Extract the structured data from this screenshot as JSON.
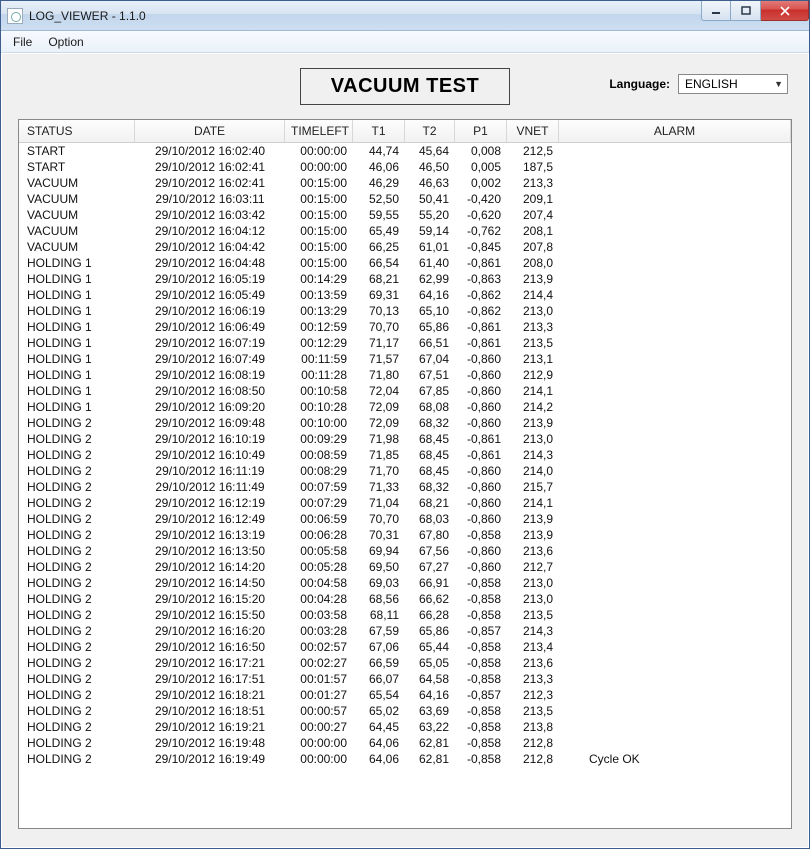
{
  "window": {
    "title": "LOG_VIEWER - 1.1.0"
  },
  "menu": {
    "file": "File",
    "option": "Option"
  },
  "header": {
    "test_title": "VACUUM TEST",
    "language_label": "Language:",
    "language_value": "ENGLISH"
  },
  "columns": {
    "status": "STATUS",
    "date": "DATE",
    "timeleft": "TIMELEFT",
    "t1": "T1",
    "t2": "T2",
    "p1": "P1",
    "vnet": "VNET",
    "alarm": "ALARM"
  },
  "rows": [
    {
      "status": "START",
      "date": "29/10/2012 16:02:40",
      "timeleft": "00:00:00",
      "t1": "44,74",
      "t2": "45,64",
      "p1": "0,008",
      "vnet": "212,5",
      "alarm": ""
    },
    {
      "status": "START",
      "date": "29/10/2012 16:02:41",
      "timeleft": "00:00:00",
      "t1": "46,06",
      "t2": "46,50",
      "p1": "0,005",
      "vnet": "187,5",
      "alarm": ""
    },
    {
      "status": "VACUUM",
      "date": "29/10/2012 16:02:41",
      "timeleft": "00:15:00",
      "t1": "46,29",
      "t2": "46,63",
      "p1": "0,002",
      "vnet": "213,3",
      "alarm": ""
    },
    {
      "status": "VACUUM",
      "date": "29/10/2012 16:03:11",
      "timeleft": "00:15:00",
      "t1": "52,50",
      "t2": "50,41",
      "p1": "-0,420",
      "vnet": "209,1",
      "alarm": ""
    },
    {
      "status": "VACUUM",
      "date": "29/10/2012 16:03:42",
      "timeleft": "00:15:00",
      "t1": "59,55",
      "t2": "55,20",
      "p1": "-0,620",
      "vnet": "207,4",
      "alarm": ""
    },
    {
      "status": "VACUUM",
      "date": "29/10/2012 16:04:12",
      "timeleft": "00:15:00",
      "t1": "65,49",
      "t2": "59,14",
      "p1": "-0,762",
      "vnet": "208,1",
      "alarm": ""
    },
    {
      "status": "VACUUM",
      "date": "29/10/2012 16:04:42",
      "timeleft": "00:15:00",
      "t1": "66,25",
      "t2": "61,01",
      "p1": "-0,845",
      "vnet": "207,8",
      "alarm": ""
    },
    {
      "status": "HOLDING 1",
      "date": "29/10/2012 16:04:48",
      "timeleft": "00:15:00",
      "t1": "66,54",
      "t2": "61,40",
      "p1": "-0,861",
      "vnet": "208,0",
      "alarm": ""
    },
    {
      "status": "HOLDING 1",
      "date": "29/10/2012 16:05:19",
      "timeleft": "00:14:29",
      "t1": "68,21",
      "t2": "62,99",
      "p1": "-0,863",
      "vnet": "213,9",
      "alarm": ""
    },
    {
      "status": "HOLDING 1",
      "date": "29/10/2012 16:05:49",
      "timeleft": "00:13:59",
      "t1": "69,31",
      "t2": "64,16",
      "p1": "-0,862",
      "vnet": "214,4",
      "alarm": ""
    },
    {
      "status": "HOLDING 1",
      "date": "29/10/2012 16:06:19",
      "timeleft": "00:13:29",
      "t1": "70,13",
      "t2": "65,10",
      "p1": "-0,862",
      "vnet": "213,0",
      "alarm": ""
    },
    {
      "status": "HOLDING 1",
      "date": "29/10/2012 16:06:49",
      "timeleft": "00:12:59",
      "t1": "70,70",
      "t2": "65,86",
      "p1": "-0,861",
      "vnet": "213,3",
      "alarm": ""
    },
    {
      "status": "HOLDING 1",
      "date": "29/10/2012 16:07:19",
      "timeleft": "00:12:29",
      "t1": "71,17",
      "t2": "66,51",
      "p1": "-0,861",
      "vnet": "213,5",
      "alarm": ""
    },
    {
      "status": "HOLDING 1",
      "date": "29/10/2012 16:07:49",
      "timeleft": "00:11:59",
      "t1": "71,57",
      "t2": "67,04",
      "p1": "-0,860",
      "vnet": "213,1",
      "alarm": ""
    },
    {
      "status": "HOLDING 1",
      "date": "29/10/2012 16:08:19",
      "timeleft": "00:11:28",
      "t1": "71,80",
      "t2": "67,51",
      "p1": "-0,860",
      "vnet": "212,9",
      "alarm": ""
    },
    {
      "status": "HOLDING 1",
      "date": "29/10/2012 16:08:50",
      "timeleft": "00:10:58",
      "t1": "72,04",
      "t2": "67,85",
      "p1": "-0,860",
      "vnet": "214,1",
      "alarm": ""
    },
    {
      "status": "HOLDING 1",
      "date": "29/10/2012 16:09:20",
      "timeleft": "00:10:28",
      "t1": "72,09",
      "t2": "68,08",
      "p1": "-0,860",
      "vnet": "214,2",
      "alarm": ""
    },
    {
      "status": "HOLDING 2",
      "date": "29/10/2012 16:09:48",
      "timeleft": "00:10:00",
      "t1": "72,09",
      "t2": "68,32",
      "p1": "-0,860",
      "vnet": "213,9",
      "alarm": ""
    },
    {
      "status": "HOLDING 2",
      "date": "29/10/2012 16:10:19",
      "timeleft": "00:09:29",
      "t1": "71,98",
      "t2": "68,45",
      "p1": "-0,861",
      "vnet": "213,0",
      "alarm": ""
    },
    {
      "status": "HOLDING 2",
      "date": "29/10/2012 16:10:49",
      "timeleft": "00:08:59",
      "t1": "71,85",
      "t2": "68,45",
      "p1": "-0,861",
      "vnet": "214,3",
      "alarm": ""
    },
    {
      "status": "HOLDING 2",
      "date": "29/10/2012 16:11:19",
      "timeleft": "00:08:29",
      "t1": "71,70",
      "t2": "68,45",
      "p1": "-0,860",
      "vnet": "214,0",
      "alarm": ""
    },
    {
      "status": "HOLDING 2",
      "date": "29/10/2012 16:11:49",
      "timeleft": "00:07:59",
      "t1": "71,33",
      "t2": "68,32",
      "p1": "-0,860",
      "vnet": "215,7",
      "alarm": ""
    },
    {
      "status": "HOLDING 2",
      "date": "29/10/2012 16:12:19",
      "timeleft": "00:07:29",
      "t1": "71,04",
      "t2": "68,21",
      "p1": "-0,860",
      "vnet": "214,1",
      "alarm": ""
    },
    {
      "status": "HOLDING 2",
      "date": "29/10/2012 16:12:49",
      "timeleft": "00:06:59",
      "t1": "70,70",
      "t2": "68,03",
      "p1": "-0,860",
      "vnet": "213,9",
      "alarm": ""
    },
    {
      "status": "HOLDING 2",
      "date": "29/10/2012 16:13:19",
      "timeleft": "00:06:28",
      "t1": "70,31",
      "t2": "67,80",
      "p1": "-0,858",
      "vnet": "213,9",
      "alarm": ""
    },
    {
      "status": "HOLDING 2",
      "date": "29/10/2012 16:13:50",
      "timeleft": "00:05:58",
      "t1": "69,94",
      "t2": "67,56",
      "p1": "-0,860",
      "vnet": "213,6",
      "alarm": ""
    },
    {
      "status": "HOLDING 2",
      "date": "29/10/2012 16:14:20",
      "timeleft": "00:05:28",
      "t1": "69,50",
      "t2": "67,27",
      "p1": "-0,860",
      "vnet": "212,7",
      "alarm": ""
    },
    {
      "status": "HOLDING 2",
      "date": "29/10/2012 16:14:50",
      "timeleft": "00:04:58",
      "t1": "69,03",
      "t2": "66,91",
      "p1": "-0,858",
      "vnet": "213,0",
      "alarm": ""
    },
    {
      "status": "HOLDING 2",
      "date": "29/10/2012 16:15:20",
      "timeleft": "00:04:28",
      "t1": "68,56",
      "t2": "66,62",
      "p1": "-0,858",
      "vnet": "213,0",
      "alarm": ""
    },
    {
      "status": "HOLDING 2",
      "date": "29/10/2012 16:15:50",
      "timeleft": "00:03:58",
      "t1": "68,11",
      "t2": "66,28",
      "p1": "-0,858",
      "vnet": "213,5",
      "alarm": ""
    },
    {
      "status": "HOLDING 2",
      "date": "29/10/2012 16:16:20",
      "timeleft": "00:03:28",
      "t1": "67,59",
      "t2": "65,86",
      "p1": "-0,857",
      "vnet": "214,3",
      "alarm": ""
    },
    {
      "status": "HOLDING 2",
      "date": "29/10/2012 16:16:50",
      "timeleft": "00:02:57",
      "t1": "67,06",
      "t2": "65,44",
      "p1": "-0,858",
      "vnet": "213,4",
      "alarm": ""
    },
    {
      "status": "HOLDING 2",
      "date": "29/10/2012 16:17:21",
      "timeleft": "00:02:27",
      "t1": "66,59",
      "t2": "65,05",
      "p1": "-0,858",
      "vnet": "213,6",
      "alarm": ""
    },
    {
      "status": "HOLDING 2",
      "date": "29/10/2012 16:17:51",
      "timeleft": "00:01:57",
      "t1": "66,07",
      "t2": "64,58",
      "p1": "-0,858",
      "vnet": "213,3",
      "alarm": ""
    },
    {
      "status": "HOLDING 2",
      "date": "29/10/2012 16:18:21",
      "timeleft": "00:01:27",
      "t1": "65,54",
      "t2": "64,16",
      "p1": "-0,857",
      "vnet": "212,3",
      "alarm": ""
    },
    {
      "status": "HOLDING 2",
      "date": "29/10/2012 16:18:51",
      "timeleft": "00:00:57",
      "t1": "65,02",
      "t2": "63,69",
      "p1": "-0,858",
      "vnet": "213,5",
      "alarm": ""
    },
    {
      "status": "HOLDING 2",
      "date": "29/10/2012 16:19:21",
      "timeleft": "00:00:27",
      "t1": "64,45",
      "t2": "63,22",
      "p1": "-0,858",
      "vnet": "213,8",
      "alarm": ""
    },
    {
      "status": "HOLDING 2",
      "date": "29/10/2012 16:19:48",
      "timeleft": "00:00:00",
      "t1": "64,06",
      "t2": "62,81",
      "p1": "-0,858",
      "vnet": "212,8",
      "alarm": ""
    },
    {
      "status": "HOLDING 2",
      "date": "29/10/2012 16:19:49",
      "timeleft": "00:00:00",
      "t1": "64,06",
      "t2": "62,81",
      "p1": "-0,858",
      "vnet": "212,8",
      "alarm": "Cycle OK"
    }
  ]
}
